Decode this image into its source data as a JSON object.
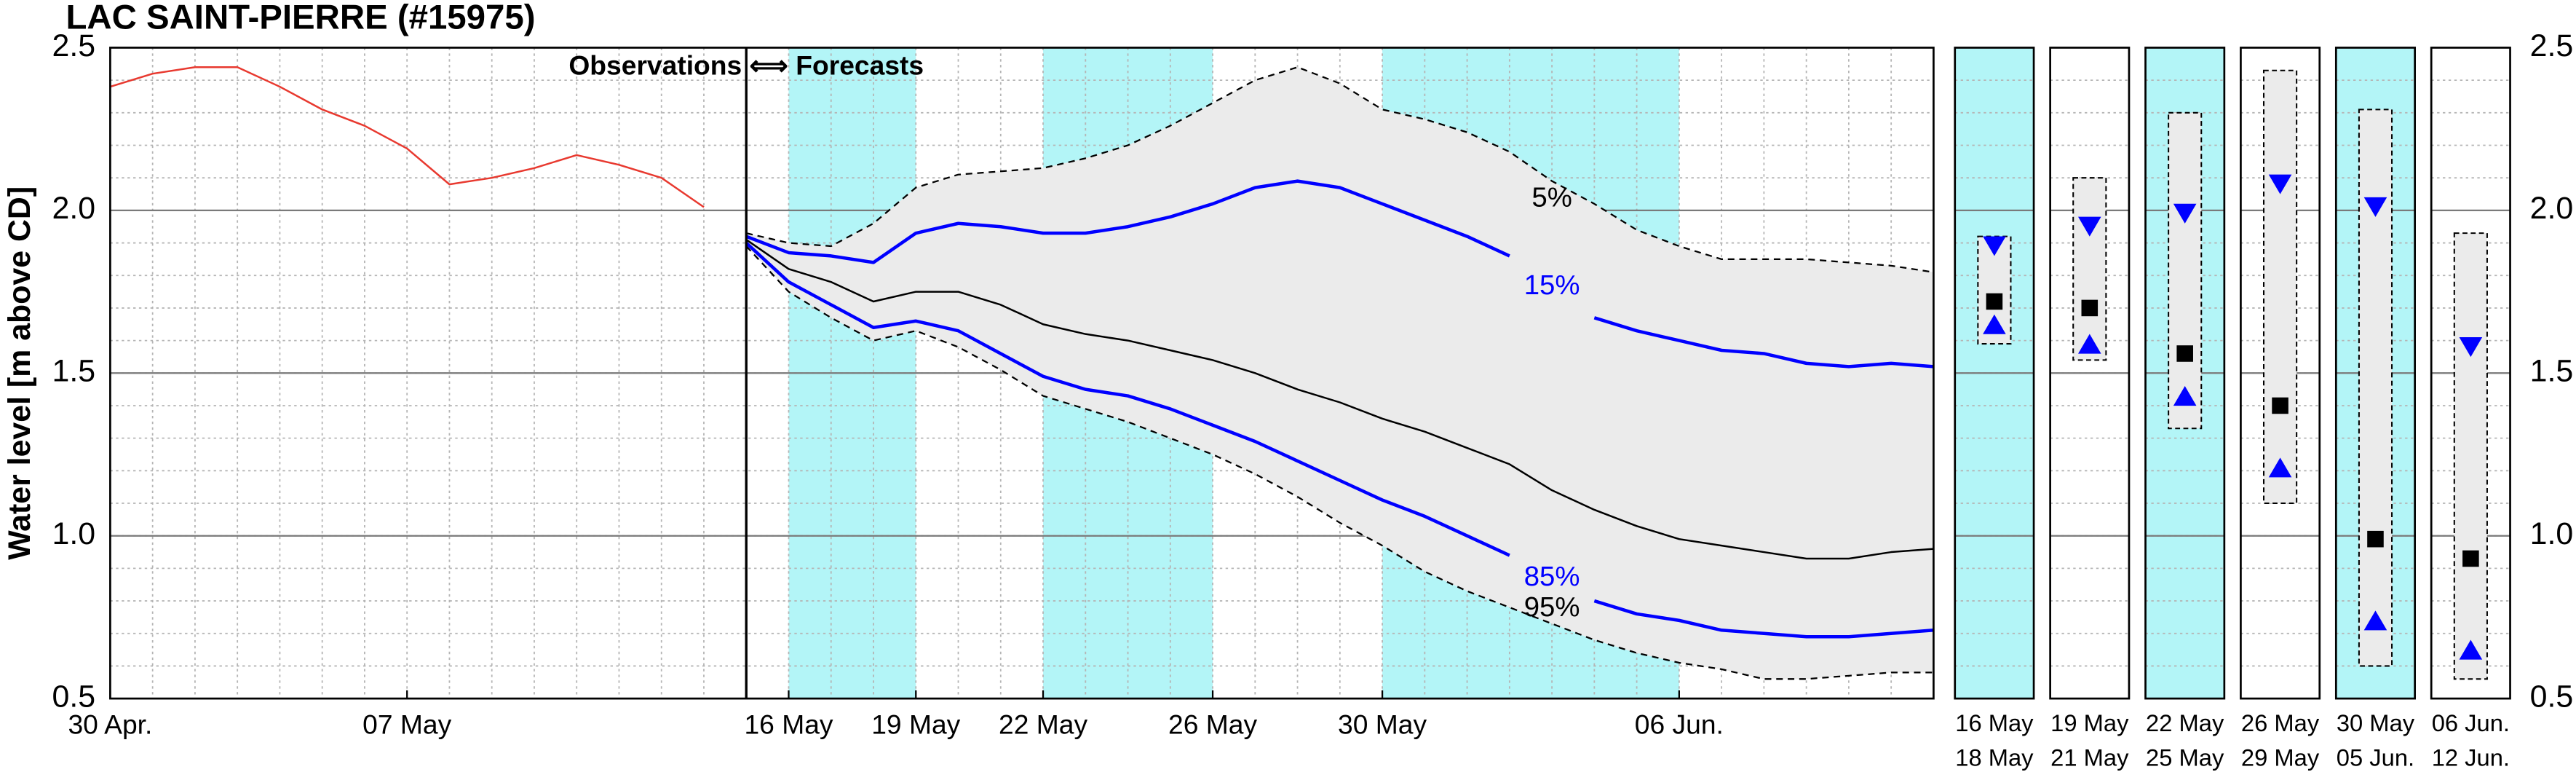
{
  "chart_data": {
    "type": "line",
    "title": "LAC SAINT-PIERRE (#15975)",
    "y_label": "Water level [m above CD]",
    "annotation": "Observations ⟺ Forecasts",
    "forecast_start": 15,
    "xlim": [
      0,
      43
    ],
    "xticks": [
      {
        "value": 0,
        "label": "30 Apr."
      },
      {
        "value": 7,
        "label": "07 May"
      },
      {
        "value": 16,
        "label": "16 May"
      },
      {
        "value": 19,
        "label": "19 May"
      },
      {
        "value": 22,
        "label": "22 May"
      },
      {
        "value": 26,
        "label": "26 May"
      },
      {
        "value": 30,
        "label": "30 May"
      },
      {
        "value": 37,
        "label": "06 Jun."
      }
    ],
    "ylim": [
      0.5,
      2.5
    ],
    "yticks": [
      0.5,
      {
        "value": 1,
        "label": "1.0"
      },
      1.5,
      {
        "value": 2,
        "label": "2.0"
      },
      2.5
    ],
    "grid": true,
    "minor_grid": {
      "x_step": 1,
      "y_step": 0.1
    },
    "shaded_periods": [
      [
        16,
        19
      ],
      [
        22,
        26
      ],
      [
        30,
        37
      ]
    ],
    "shade_color": "#b3f5f7",
    "envelope_color": "#ebebeb",
    "series": [
      {
        "color": "#e8392f",
        "x": [
          0,
          1,
          2,
          3,
          4,
          5,
          6,
          7,
          8,
          9,
          10,
          11,
          12,
          13,
          14
        ],
        "values": [
          2.38,
          2.42,
          2.44,
          2.44,
          2.38,
          2.31,
          2.26,
          2.19,
          2.08,
          2.1,
          2.13,
          2.17,
          2.14,
          2.1,
          2.01
        ]
      },
      {
        "name": "5%",
        "color": "#000000",
        "style": "dashed",
        "x": [
          15,
          16,
          17,
          18,
          19,
          20,
          21,
          22,
          23,
          24,
          25,
          26,
          27,
          28,
          29,
          30,
          31,
          32,
          33,
          34,
          35,
          36,
          37,
          38,
          39,
          40,
          41,
          42,
          43
        ],
        "values": [
          1.93,
          1.9,
          1.89,
          1.96,
          2.07,
          2.11,
          2.12,
          2.13,
          2.16,
          2.2,
          2.26,
          2.33,
          2.4,
          2.44,
          2.39,
          2.31,
          2.28,
          2.24,
          2.18,
          2.09,
          2.02,
          1.94,
          1.89,
          1.85,
          1.85,
          1.85,
          1.84,
          1.83,
          1.81
        ]
      },
      {
        "name": "15%",
        "color": "#0000ff",
        "x": [
          15,
          16,
          17,
          18,
          19,
          20,
          21,
          22,
          23,
          24,
          25,
          26,
          27,
          28,
          29,
          30,
          31,
          32,
          33,
          34,
          35,
          36,
          37,
          38,
          39,
          40,
          41,
          42,
          43
        ],
        "values": [
          1.92,
          1.87,
          1.86,
          1.84,
          1.93,
          1.96,
          1.95,
          1.93,
          1.93,
          1.95,
          1.98,
          2.02,
          2.07,
          2.09,
          2.07,
          2.02,
          1.97,
          1.92,
          1.86,
          null,
          1.67,
          1.63,
          1.6,
          1.57,
          1.56,
          1.53,
          1.52,
          1.53,
          1.52
        ]
      },
      {
        "color": "#000000",
        "x": [
          15,
          16,
          17,
          18,
          19,
          20,
          21,
          22,
          23,
          24,
          25,
          26,
          27,
          28,
          29,
          30,
          31,
          32,
          33,
          34,
          35,
          36,
          37,
          38,
          39,
          40,
          41,
          42,
          43
        ],
        "values": [
          1.91,
          1.82,
          1.78,
          1.72,
          1.75,
          1.75,
          1.71,
          1.65,
          1.62,
          1.6,
          1.57,
          1.54,
          1.5,
          1.45,
          1.41,
          1.36,
          1.32,
          1.27,
          1.22,
          1.14,
          1.08,
          1.03,
          0.99,
          0.97,
          0.95,
          0.93,
          0.93,
          0.95,
          0.96
        ]
      },
      {
        "name": "85%",
        "color": "#0000ff",
        "x": [
          15,
          16,
          17,
          18,
          19,
          20,
          21,
          22,
          23,
          24,
          25,
          26,
          27,
          28,
          29,
          30,
          31,
          32,
          33,
          34,
          35,
          36,
          37,
          38,
          39,
          40,
          41,
          42,
          43
        ],
        "values": [
          1.9,
          1.78,
          1.71,
          1.64,
          1.66,
          1.63,
          1.56,
          1.49,
          1.45,
          1.43,
          1.39,
          1.34,
          1.29,
          1.23,
          1.17,
          1.11,
          1.06,
          1.0,
          0.94,
          null,
          0.8,
          0.76,
          0.74,
          0.71,
          0.7,
          0.69,
          0.69,
          0.7,
          0.71
        ]
      },
      {
        "name": "95%",
        "color": "#000000",
        "style": "dashed",
        "x": [
          15,
          16,
          17,
          18,
          19,
          20,
          21,
          22,
          23,
          24,
          25,
          26,
          27,
          28,
          29,
          30,
          31,
          32,
          33,
          34,
          35,
          36,
          37,
          38,
          39,
          40,
          41,
          42,
          43
        ],
        "values": [
          1.89,
          1.75,
          1.67,
          1.6,
          1.63,
          1.58,
          1.51,
          1.43,
          1.39,
          1.35,
          1.3,
          1.25,
          1.19,
          1.12,
          1.04,
          0.97,
          0.89,
          0.83,
          0.78,
          0.73,
          0.68,
          0.64,
          0.61,
          0.59,
          0.56,
          0.56,
          0.57,
          0.58,
          0.58
        ]
      }
    ],
    "summary_marker_color": "#0000ff",
    "summary_median_color": "#000000",
    "summary": [
      {
        "from": "16 May",
        "to": "18 May",
        "shaded": true,
        "low": 1.59,
        "high": 1.92,
        "upper": 1.89,
        "median": 1.72,
        "lower": 1.65
      },
      {
        "from": "19 May",
        "to": "21 May",
        "shaded": false,
        "low": 1.54,
        "high": 2.1,
        "upper": 1.95,
        "median": 1.7,
        "lower": 1.59
      },
      {
        "from": "22 May",
        "to": "25 May",
        "shaded": true,
        "low": 1.33,
        "high": 2.3,
        "upper": 1.99,
        "median": 1.56,
        "lower": 1.43
      },
      {
        "from": "26 May",
        "to": "29 May",
        "shaded": false,
        "low": 1.1,
        "high": 2.43,
        "upper": 2.08,
        "median": 1.4,
        "lower": 1.21
      },
      {
        "from": "30 May",
        "to": "05 Jun.",
        "shaded": true,
        "low": 0.6,
        "high": 2.31,
        "upper": 2.01,
        "median": 0.99,
        "lower": 0.74
      },
      {
        "from": "06 Jun.",
        "to": "12 Jun.",
        "shaded": false,
        "low": 0.56,
        "high": 1.93,
        "upper": 1.58,
        "median": 0.93,
        "lower": 0.65
      }
    ]
  }
}
